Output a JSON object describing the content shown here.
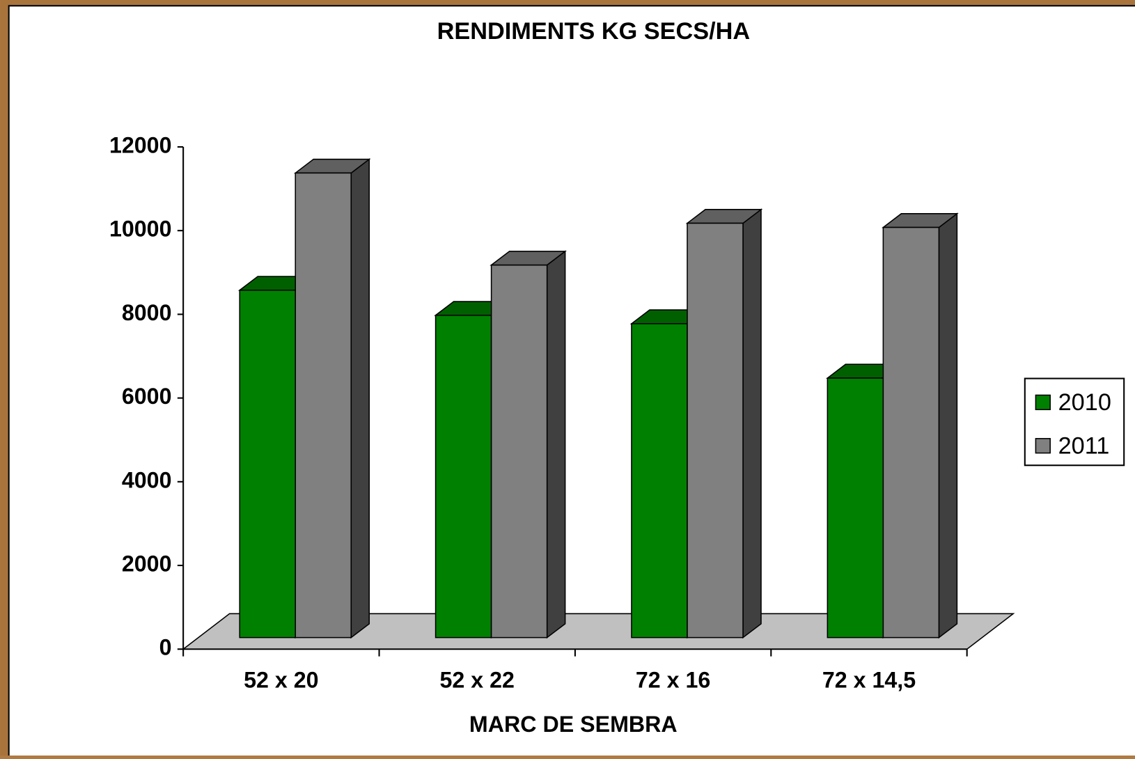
{
  "chart_data": {
    "type": "bar3d",
    "title": "RENDIMENTS KG SECS/HA",
    "x_label": "MARC DE SEMBRA",
    "categories": [
      "52 x 20",
      "52 x 22",
      "72 x 16",
      "72 x 14,5"
    ],
    "series": [
      {
        "name": "2010",
        "color": "#008000",
        "values": [
          8300,
          7700,
          7500,
          6200
        ]
      },
      {
        "name": "2011",
        "color": "#808080",
        "values": [
          11100,
          8900,
          9900,
          9800
        ]
      }
    ],
    "ylim": [
      0,
      12000
    ],
    "yticks": [
      0,
      2000,
      4000,
      6000,
      8000,
      10000,
      12000
    ],
    "legend": "right"
  }
}
